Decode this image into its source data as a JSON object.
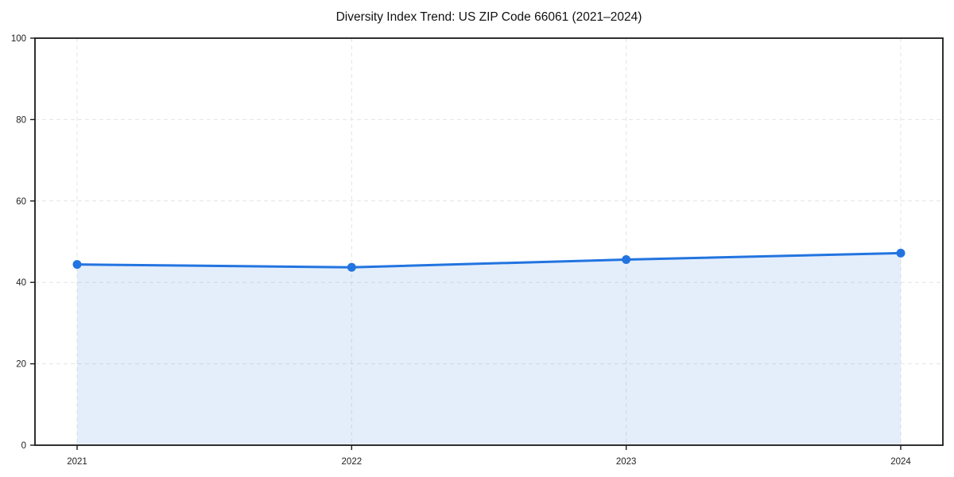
{
  "chart_data": {
    "type": "area",
    "title": "Diversity Index Trend: US ZIP Code 66061 (2021–2024)",
    "categories": [
      "2021",
      "2022",
      "2023",
      "2024"
    ],
    "series": [
      {
        "name": "Diversity Index",
        "values": [
          44.4,
          43.7,
          45.6,
          47.2
        ]
      }
    ],
    "xlabel": "",
    "ylabel": "",
    "ylim": [
      0,
      100
    ],
    "yticks": [
      0,
      20,
      40,
      60,
      80,
      100
    ],
    "grid": "dashed both axes",
    "legend": "none",
    "colors": {
      "line": "#2274e0",
      "marker": "#2274e0",
      "fill": "rgba(34, 116, 224, 0.12)",
      "grid": "#e4e4e4",
      "spine": "#1a1a1a",
      "tick_label": "#222222",
      "background": "#ffffff"
    }
  }
}
